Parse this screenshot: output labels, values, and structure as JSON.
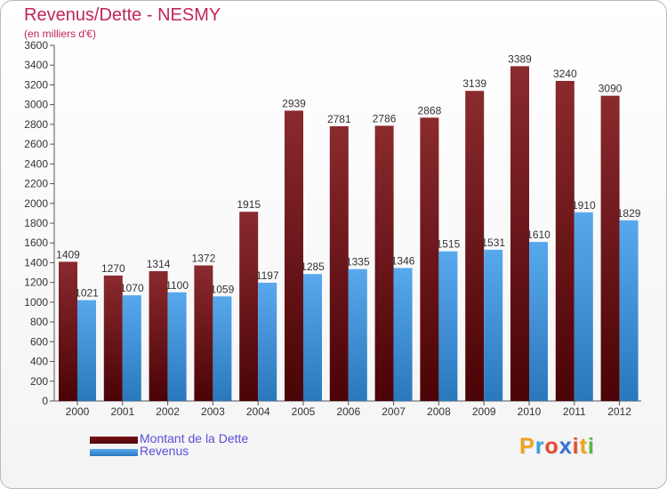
{
  "title": "Revenus/Dette - NESMY",
  "subtitle": "(en milliers d'€)",
  "colors": {
    "dette": "#7a1418",
    "revenus": "#3f8fd8",
    "title": "#c0245c",
    "legend_text": "#5a4fd6"
  },
  "legend": {
    "placement": "bottom-left",
    "items": [
      {
        "label": "Montant de la Dette",
        "color": "#5c0508"
      },
      {
        "label": "Revenus",
        "color": "#3f8fd8"
      }
    ]
  },
  "logo": {
    "text": "Proxiti",
    "letters": [
      {
        "ch": "P",
        "color": "#f0a21c"
      },
      {
        "ch": "r",
        "color": "#3aa0d8"
      },
      {
        "ch": "o",
        "color": "#e84a30"
      },
      {
        "ch": "x",
        "color": "#3a6fd8"
      },
      {
        "ch": "i",
        "color": "#e84a30"
      },
      {
        "ch": "t",
        "color": "#f0a21c"
      },
      {
        "ch": "i",
        "color": "#5ab840"
      }
    ]
  },
  "chart_data": {
    "type": "bar",
    "title": "Revenus/Dette - NESMY",
    "ylabel": "(en milliers d'€)",
    "xlabel": "",
    "categories": [
      "2000",
      "2001",
      "2002",
      "2003",
      "2004",
      "2005",
      "2006",
      "2007",
      "2008",
      "2009",
      "2010",
      "2011",
      "2012"
    ],
    "series": [
      {
        "name": "Montant de la Dette",
        "values": [
          1409,
          1270,
          1314,
          1372,
          1915,
          2939,
          2781,
          2786,
          2868,
          3139,
          3389,
          3240,
          3090
        ]
      },
      {
        "name": "Revenus",
        "values": [
          1021,
          1070,
          1100,
          1059,
          1197,
          1285,
          1335,
          1346,
          1515,
          1531,
          1610,
          1910,
          1829
        ]
      }
    ],
    "ylim": [
      0,
      3600
    ],
    "yticks": [
      0,
      200,
      400,
      600,
      800,
      1000,
      1200,
      1400,
      1600,
      1800,
      2000,
      2200,
      2400,
      2600,
      2800,
      3000,
      3200,
      3400,
      3600
    ],
    "grid": false,
    "legend": "bottom-left"
  }
}
